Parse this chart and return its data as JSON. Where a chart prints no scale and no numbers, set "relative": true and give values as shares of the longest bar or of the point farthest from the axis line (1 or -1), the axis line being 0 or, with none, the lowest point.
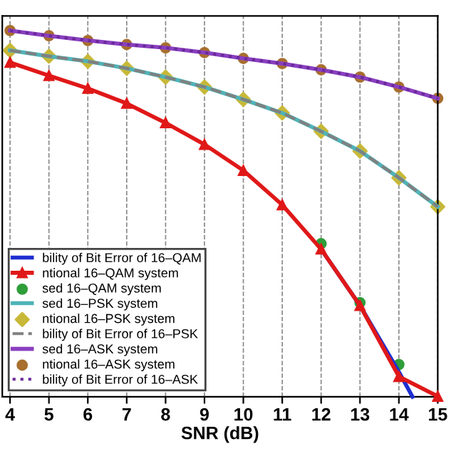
{
  "chart_data": {
    "type": "line",
    "relative": true,
    "xlabel": "SNR (dB)",
    "xlim": [
      3.8,
      15
    ],
    "xticks": [
      4,
      5,
      6,
      7,
      8,
      9,
      10,
      11,
      12,
      13,
      14,
      15
    ],
    "grid": "x",
    "legend": "bottom left",
    "x": [
      4,
      5,
      6,
      7,
      8,
      9,
      10,
      11,
      12,
      13,
      14,
      15
    ],
    "series": [
      {
        "name": "bility of Bit Error of 16–QAM",
        "color": "#1f2fd0",
        "marker": "none",
        "line_style": "solid",
        "x": [
          12,
          13,
          14,
          14.35
        ],
        "values": [
          0.403,
          0.249,
          0.068,
          0
        ]
      },
      {
        "name": "ntional 16–QAM system",
        "color": "#e01818",
        "marker": "triangle",
        "line_style": "solid",
        "values": [
          0.913,
          0.877,
          0.842,
          0.801,
          0.748,
          0.689,
          0.618,
          0.524,
          0.403,
          0.249,
          0.055,
          0.001
        ]
      },
      {
        "name": "sed 16–QAM system",
        "type": "scatter",
        "color": "#2e9e3a",
        "marker": "circle",
        "values": [
          null,
          null,
          null,
          null,
          null,
          null,
          null,
          null,
          0.418,
          0.257,
          0.088,
          null
        ]
      },
      {
        "name": "sed 16–PSK system",
        "color": "#4fb3b8",
        "marker": "none",
        "line_style": "solid",
        "values": [
          0.946,
          0.93,
          0.916,
          0.897,
          0.873,
          0.846,
          0.812,
          0.775,
          0.725,
          0.671,
          0.598,
          0.519
        ]
      },
      {
        "name": "ntional 16–PSK system",
        "type": "scatter",
        "color": "#c8b838",
        "marker": "diamond",
        "values": [
          0.946,
          0.93,
          0.916,
          0.897,
          0.873,
          0.846,
          0.812,
          0.775,
          0.725,
          0.671,
          0.598,
          0.519
        ]
      },
      {
        "name": "bility of Bit Error of 16–PSK",
        "color": "#808080",
        "marker": "none",
        "line_style": "dashed",
        "values": [
          0.946,
          0.93,
          0.916,
          0.897,
          0.873,
          0.846,
          0.812,
          0.775,
          0.725,
          0.671,
          0.598,
          0.519
        ]
      },
      {
        "name": "sed 16–ASK system",
        "color": "#8a3fc0",
        "marker": "none",
        "line_style": "solid",
        "values": [
          1,
          0.986,
          0.973,
          0.962,
          0.953,
          0.94,
          0.924,
          0.91,
          0.893,
          0.873,
          0.846,
          0.815
        ]
      },
      {
        "name": "ntional 16–ASK system",
        "type": "scatter",
        "color": "#a86f2e",
        "marker": "circle",
        "values": [
          1,
          0.986,
          0.973,
          0.962,
          0.953,
          0.94,
          0.924,
          0.91,
          0.893,
          0.873,
          0.846,
          0.815
        ]
      },
      {
        "name": "bility of Bit Error of 16–ASK",
        "color": "#6a2a9a",
        "marker": "none",
        "line_style": "dotted",
        "values": [
          1,
          0.986,
          0.973,
          0.962,
          0.953,
          0.94,
          0.924,
          0.91,
          0.893,
          0.873,
          0.846,
          0.815
        ]
      }
    ]
  }
}
